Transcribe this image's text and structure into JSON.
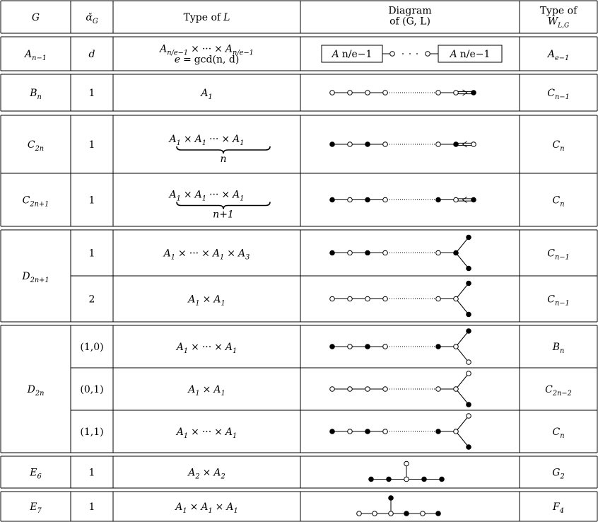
{
  "header": {
    "G": [
      "G"
    ],
    "alpha": [
      [
        "α̌",
        "G"
      ]
    ],
    "L": [
      "Type of",
      "L"
    ],
    "diagram": [
      [
        "Diagram"
      ],
      [
        "of (G, L)"
      ]
    ],
    "W": [
      [
        "Type of"
      ],
      [
        [
          "W",
          "L,G"
        ]
      ]
    ]
  },
  "groups": [
    {
      "G": [
        [
          "A",
          "n−1"
        ]
      ],
      "rows": [
        {
          "alpha": [
            "d"
          ],
          "L": {
            "lines": [
              [
                [
                  "A",
                  "n/e−1"
                ],
                "×",
                "···",
                "×",
                [
                  "A",
                  "n/e−1"
                ]
              ],
              [
                "e",
                "=",
                "gcd(n, d)"
              ]
            ]
          },
          "diagram": [
            [
              "A",
              "n/e−1"
            ],
            [
              "A",
              "n/e−1"
            ]
          ],
          "W": [
            [
              "A",
              "e−1"
            ]
          ]
        }
      ]
    },
    {
      "G": [
        [
          "B",
          "n"
        ]
      ],
      "rows": [
        {
          "alpha": [
            "1"
          ],
          "L": {
            "lines": [
              [
                [
                  "A",
                  "1"
                ]
              ]
            ]
          },
          "W": [
            [
              "C",
              "n−1"
            ]
          ]
        }
      ]
    },
    {
      "G": [
        [
          "C",
          "2n"
        ]
      ],
      "rows": [
        {
          "alpha": [
            "1"
          ],
          "L": {
            "lines": [
              [
                [
                  "A",
                  "1"
                ],
                "×",
                [
                  "A",
                  "1"
                ],
                "···",
                "×",
                [
                  "A",
                  "1"
                ]
              ]
            ],
            "brace": "n"
          },
          "W": [
            [
              "C",
              "n"
            ]
          ]
        }
      ]
    },
    {
      "G": [
        [
          "C",
          "2n+1"
        ]
      ],
      "rows": [
        {
          "alpha": [
            "1"
          ],
          "L": {
            "lines": [
              [
                [
                  "A",
                  "1"
                ],
                "×",
                [
                  "A",
                  "1"
                ],
                "···",
                "×",
                [
                  "A",
                  "1"
                ]
              ]
            ],
            "brace": "n+1"
          },
          "W": [
            [
              "C",
              "n"
            ]
          ]
        }
      ]
    },
    {
      "G": [
        [
          "D",
          "2n+1"
        ]
      ],
      "rows": [
        {
          "alpha": [
            "1"
          ],
          "L": {
            "lines": [
              [
                [
                  "A",
                  "1"
                ],
                "×",
                "···",
                "×",
                [
                  "A",
                  "1"
                ],
                "×",
                [
                  "A",
                  "3"
                ]
              ]
            ]
          },
          "W": [
            [
              "C",
              "n−1"
            ]
          ]
        },
        {
          "alpha": [
            "2"
          ],
          "L": {
            "lines": [
              [
                [
                  "A",
                  "1"
                ],
                "×",
                [
                  "A",
                  "1"
                ]
              ]
            ]
          },
          "W": [
            [
              "C",
              "n−1"
            ]
          ]
        }
      ]
    },
    {
      "G": [
        [
          "D",
          "2n"
        ]
      ],
      "rows": [
        {
          "alpha": [
            "(1,0)"
          ],
          "L": {
            "lines": [
              [
                [
                  "A",
                  "1"
                ],
                "×",
                "···",
                "×",
                [
                  "A",
                  "1"
                ]
              ]
            ]
          },
          "W": [
            [
              "B",
              "n"
            ]
          ]
        },
        {
          "alpha": [
            "(0,1)"
          ],
          "L": {
            "lines": [
              [
                [
                  "A",
                  "1"
                ],
                "×",
                [
                  "A",
                  "1"
                ]
              ]
            ]
          },
          "W": [
            [
              "C",
              "2n−2"
            ]
          ]
        },
        {
          "alpha": [
            "(1,1)"
          ],
          "L": {
            "lines": [
              [
                [
                  "A",
                  "1"
                ],
                "×",
                "···",
                "×",
                [
                  "A",
                  "1"
                ]
              ]
            ]
          },
          "W": [
            [
              "C",
              "n"
            ]
          ]
        }
      ]
    },
    {
      "G": [
        [
          "E",
          "6"
        ]
      ],
      "rows": [
        {
          "alpha": [
            "1"
          ],
          "L": {
            "lines": [
              [
                [
                  "A",
                  "2"
                ],
                "×",
                [
                  "A",
                  "2"
                ]
              ]
            ]
          },
          "W": [
            [
              "G",
              "2"
            ]
          ]
        }
      ]
    },
    {
      "G": [
        [
          "E",
          "7"
        ]
      ],
      "rows": [
        {
          "alpha": [
            "1"
          ],
          "L": {
            "lines": [
              [
                [
                  "A",
                  "1"
                ],
                "×",
                [
                  "A",
                  "1"
                ],
                "×",
                [
                  "A",
                  "1"
                ]
              ]
            ]
          },
          "W": [
            [
              "F",
              "4"
            ]
          ]
        }
      ]
    }
  ]
}
